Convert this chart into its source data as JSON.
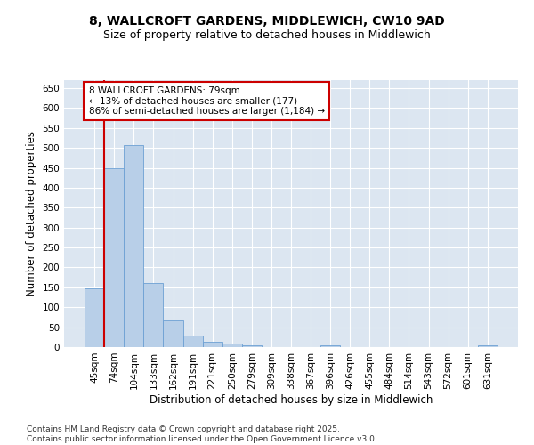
{
  "title_line1": "8, WALLCROFT GARDENS, MIDDLEWICH, CW10 9AD",
  "title_line2": "Size of property relative to detached houses in Middlewich",
  "xlabel": "Distribution of detached houses by size in Middlewich",
  "ylabel": "Number of detached properties",
  "categories": [
    "45sqm",
    "74sqm",
    "104sqm",
    "133sqm",
    "162sqm",
    "191sqm",
    "221sqm",
    "250sqm",
    "279sqm",
    "309sqm",
    "338sqm",
    "367sqm",
    "396sqm",
    "426sqm",
    "455sqm",
    "484sqm",
    "514sqm",
    "543sqm",
    "572sqm",
    "601sqm",
    "631sqm"
  ],
  "values": [
    148,
    450,
    508,
    160,
    67,
    30,
    14,
    8,
    5,
    0,
    0,
    0,
    4,
    0,
    0,
    0,
    0,
    0,
    0,
    0,
    5
  ],
  "bar_color": "#b8cfe8",
  "bar_edge_color": "#6ca0d4",
  "vline_index": 0.5,
  "vline_color": "#cc0000",
  "annotation_text": "8 WALLCROFT GARDENS: 79sqm\n← 13% of detached houses are smaller (177)\n86% of semi-detached houses are larger (1,184) →",
  "annotation_box_facecolor": "#ffffff",
  "annotation_box_edgecolor": "#cc0000",
  "ylim": [
    0,
    670
  ],
  "yticks": [
    0,
    50,
    100,
    150,
    200,
    250,
    300,
    350,
    400,
    450,
    500,
    550,
    600,
    650
  ],
  "plot_bg_color": "#dce6f1",
  "grid_color": "#ffffff",
  "footer_text": "Contains HM Land Registry data © Crown copyright and database right 2025.\nContains public sector information licensed under the Open Government Licence v3.0.",
  "title_fontsize": 10,
  "subtitle_fontsize": 9,
  "axis_label_fontsize": 8.5,
  "tick_fontsize": 7.5,
  "annotation_fontsize": 7.5,
  "footer_fontsize": 6.5
}
